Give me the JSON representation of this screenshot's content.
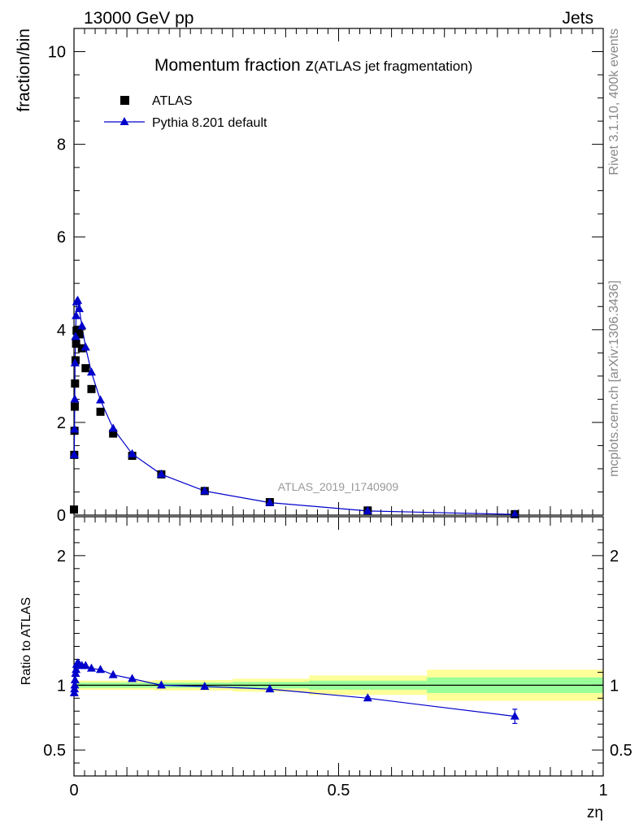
{
  "header": {
    "left": "13000 GeV pp",
    "right": "Jets"
  },
  "title": {
    "main": "Momentum fraction z",
    "sub": "(ATLAS jet fragmentation)"
  },
  "side_labels": {
    "rivet": "Rivet 3.1.10,  400k events",
    "mcplots": "mcplots.cern.ch [arXiv:1306.3436]"
  },
  "analysis_id": "ATLAS_2019_I1740909",
  "colors": {
    "data": "#000000",
    "mc": "#0000cc",
    "band_inner": "#99ff99",
    "band_outer": "#ffff99"
  },
  "chart_data": [
    {
      "type": "scatter",
      "panel": "main",
      "ylabel": "fraction/bin",
      "xlim": [
        0,
        1
      ],
      "ylim": [
        0,
        10.5
      ],
      "yticks": [
        "0",
        "2",
        "4",
        "6",
        "8",
        "10"
      ],
      "legend_position": "top-left",
      "series": [
        {
          "name": "ATLAS",
          "marker": "square",
          "x": [
            0.0,
            0.0005,
            0.001,
            0.0015,
            0.002,
            0.003,
            0.004,
            0.005,
            0.007,
            0.01,
            0.015,
            0.022,
            0.033,
            0.05,
            0.074,
            0.11,
            0.165,
            0.247,
            0.37,
            0.555,
            0.833
          ],
          "y": [
            0.12,
            1.3,
            1.82,
            2.34,
            2.84,
            3.34,
            3.7,
            3.98,
            4.0,
            3.9,
            3.6,
            3.17,
            2.72,
            2.23,
            1.76,
            1.28,
            0.88,
            0.52,
            0.28,
            0.1,
            0.02
          ]
        },
        {
          "name": "Pythia 8.201 default",
          "marker": "triangle",
          "x": [
            0.0005,
            0.001,
            0.0015,
            0.002,
            0.003,
            0.004,
            0.005,
            0.007,
            0.01,
            0.015,
            0.022,
            0.033,
            0.05,
            0.074,
            0.11,
            0.165,
            0.247,
            0.37,
            0.555,
            0.833
          ],
          "y": [
            1.3,
            1.85,
            2.5,
            3.28,
            3.85,
            4.3,
            4.6,
            4.63,
            4.45,
            4.08,
            3.62,
            3.08,
            2.48,
            1.87,
            1.32,
            0.88,
            0.52,
            0.27,
            0.09,
            0.015
          ]
        }
      ]
    },
    {
      "type": "line",
      "panel": "ratio",
      "xlabel": "zη",
      "ylabel": "Ratio to ATLAS",
      "xlim": [
        0,
        1
      ],
      "ylim": [
        0.3,
        2.3
      ],
      "yticks": [
        "0.5",
        "1",
        "2"
      ],
      "xticks": [
        "0",
        "0.5",
        "1"
      ],
      "bands": {
        "edges": [
          0,
          0.15,
          0.3,
          0.444,
          0.667,
          1.0
        ],
        "inner_half_width": [
          0.02,
          0.02,
          0.025,
          0.035,
          0.06
        ],
        "outer_half_width": [
          0.035,
          0.04,
          0.05,
          0.075,
          0.12
        ]
      },
      "series": [
        {
          "name": "Pythia 8.201 default",
          "x": [
            0.0005,
            0.001,
            0.0015,
            0.002,
            0.003,
            0.004,
            0.005,
            0.007,
            0.01,
            0.015,
            0.022,
            0.033,
            0.05,
            0.074,
            0.11,
            0.165,
            0.247,
            0.37,
            0.555,
            0.833
          ],
          "y": [
            0.94,
            0.97,
            1.0,
            1.04,
            1.09,
            1.12,
            1.16,
            1.17,
            1.16,
            1.15,
            1.15,
            1.13,
            1.12,
            1.08,
            1.05,
            1.0,
            0.99,
            0.97,
            0.9,
            0.76
          ],
          "yerr": [
            0,
            0,
            0,
            0,
            0,
            0,
            0,
            0,
            0,
            0,
            0,
            0,
            0,
            0,
            0,
            0,
            0,
            0,
            0.01,
            0.055
          ]
        }
      ]
    }
  ]
}
